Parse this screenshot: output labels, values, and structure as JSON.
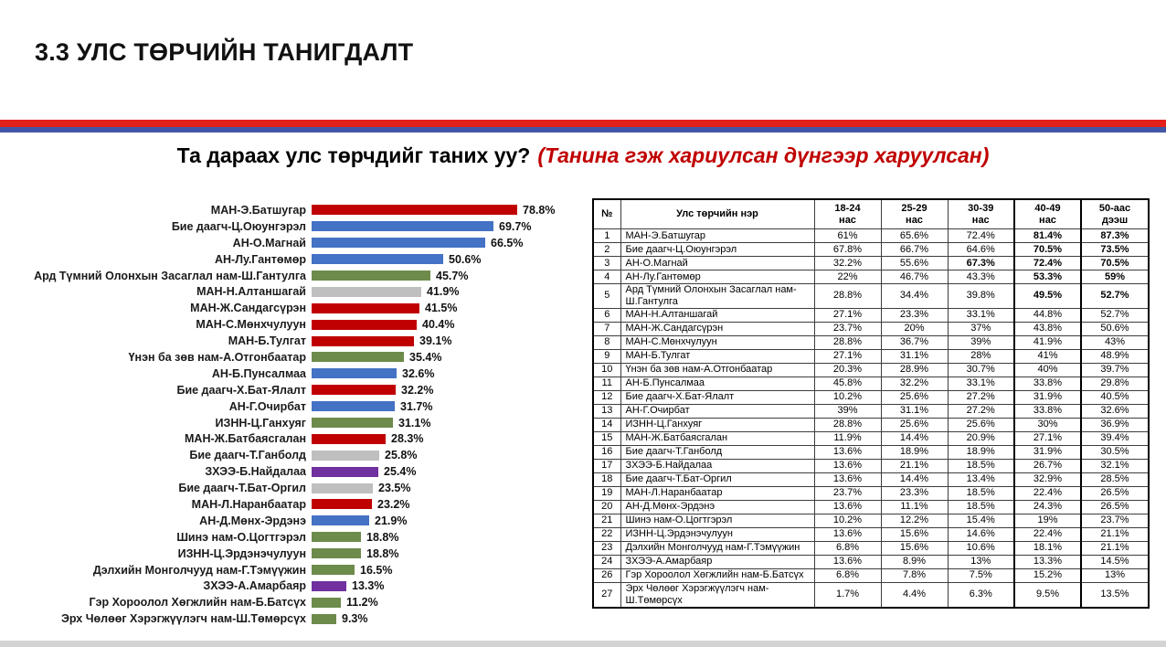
{
  "page": {
    "title": "3.3 УЛС ТӨРЧИЙН ТАНИГДАЛТ",
    "question": "Та дараах улс төрчдийг таних уу?",
    "question_note": "(Танина гэж хариулсан дүнгээр харуулсан)"
  },
  "colors": {
    "red": "#C00000",
    "blue": "#4472C4",
    "green": "#6D8B4A",
    "gray": "#BFBFBF",
    "purple": "#7030A0",
    "divider_red": "#E32119",
    "divider_blue": "#4356A5",
    "note_red": "#C00000",
    "footer_gray": "#D4D4D4"
  },
  "chart_data": [
    {
      "type": "bar",
      "orientation": "horizontal",
      "title": "Та дараах улс төрчдийг таних уу?",
      "xlabel": "",
      "ylabel": "",
      "xlim": [
        0,
        100
      ],
      "value_format": "percent",
      "categories": [
        "МАН-Э.Батшугар",
        "Бие даагч-Ц.Оюунгэрэл",
        "АН-О.Магнай",
        "АН-Лу.Гантөмөр",
        "Ард Түмний Олонхын Засаглал нам-Ш.Гантулга",
        "МАН-Н.Алтаншагай",
        "МАН-Ж.Сандагсүрэн",
        "МАН-С.Мөнхчулуун",
        "МАН-Б.Тулгат",
        "Үнэн ба зөв нам-А.Отгонбаатар",
        "АН-Б.Пунсалмаа",
        "Бие даагч-Х.Бат-Ялалт",
        "АН-Г.Очирбат",
        "ИЗНН-Ц.Ганхуяг",
        "МАН-Ж.Батбаясгалан",
        "Бие даагч-Т.Ганболд",
        "ЗХЭЭ-Б.Найдалаа",
        "Бие даагч-Т.Бат-Оргил",
        "МАН-Л.Наранбаатар",
        "АН-Д.Мөнх-Эрдэнэ",
        "Шинэ нам-О.Цогтгэрэл",
        "ИЗНН-Ц.Эрдэнэчулуун",
        "Дэлхийн Монголчууд нам-Г.Тэмүүжин",
        "ЗХЭЭ-А.Амарбаяр",
        "Гэр Хороолол Хөгжлийн нам-Б.Батсүх",
        "Эрх Чөлөөг Хэрэгжүүлэгч нам-Ш.Төмөрсүх"
      ],
      "values": [
        78.8,
        69.7,
        66.5,
        50.6,
        45.7,
        41.9,
        41.5,
        40.4,
        39.1,
        35.4,
        32.6,
        32.2,
        31.7,
        31.1,
        28.3,
        25.8,
        25.4,
        23.5,
        23.2,
        21.9,
        18.8,
        18.8,
        16.5,
        13.3,
        11.2,
        9.3
      ],
      "labels": [
        "78.8%",
        "69.7%",
        "66.5%",
        "50.6%",
        "45.7%",
        "41.9%",
        "41.5%",
        "40.4%",
        "39.1%",
        "35.4%",
        "32.6%",
        "32.2%",
        "31.7%",
        "31.1%",
        "28.3%",
        "25.8%",
        "25.4%",
        "23.5%",
        "23.2%",
        "21.9%",
        "18.8%",
        "18.8%",
        "16.5%",
        "13.3%",
        "11.2%",
        "9.3%"
      ],
      "bar_colors": [
        "red",
        "blue",
        "blue",
        "blue",
        "green",
        "gray",
        "red",
        "red",
        "red",
        "green",
        "blue",
        "red",
        "blue",
        "green",
        "red",
        "gray",
        "purple",
        "gray",
        "red",
        "blue",
        "green",
        "green",
        "green",
        "purple",
        "green",
        "green"
      ]
    },
    {
      "type": "table",
      "columns": [
        "№",
        "Улс төрчийн нэр",
        "18-24 нас",
        "25-29 нас",
        "30-39 нас",
        "40-49 нас",
        "50-аас дээш"
      ],
      "rows": [
        {
          "no": "1",
          "name": "МАН-Э.Батшугар",
          "values": [
            "61%",
            "65.6%",
            "72.4%",
            "81.4%",
            "87.3%"
          ],
          "bold": [
            0,
            0,
            0,
            1,
            1
          ]
        },
        {
          "no": "2",
          "name": "Бие даагч-Ц.Оюунгэрэл",
          "values": [
            "67.8%",
            "66.7%",
            "64.6%",
            "70.5%",
            "73.5%"
          ],
          "bold": [
            0,
            0,
            0,
            1,
            1
          ]
        },
        {
          "no": "3",
          "name": "АН-О.Магнай",
          "values": [
            "32.2%",
            "55.6%",
            "67.3%",
            "72.4%",
            "70.5%"
          ],
          "bold": [
            0,
            0,
            1,
            1,
            1
          ]
        },
        {
          "no": "4",
          "name": "АН-Лу.Гантөмөр",
          "values": [
            "22%",
            "46.7%",
            "43.3%",
            "53.3%",
            "59%"
          ],
          "bold": [
            0,
            0,
            0,
            1,
            1
          ]
        },
        {
          "no": "5",
          "name": "Ард Түмний Олонхын Засаглал нам-Ш.Гантулга",
          "values": [
            "28.8%",
            "34.4%",
            "39.8%",
            "49.5%",
            "52.7%"
          ],
          "bold": [
            0,
            0,
            0,
            1,
            1
          ]
        },
        {
          "no": "6",
          "name": "МАН-Н.Алтаншагай",
          "values": [
            "27.1%",
            "23.3%",
            "33.1%",
            "44.8%",
            "52.7%"
          ],
          "bold": [
            0,
            0,
            0,
            0,
            0
          ]
        },
        {
          "no": "7",
          "name": "МАН-Ж.Сандагсүрэн",
          "values": [
            "23.7%",
            "20%",
            "37%",
            "43.8%",
            "50.6%"
          ],
          "bold": [
            0,
            0,
            0,
            0,
            0
          ]
        },
        {
          "no": "8",
          "name": "МАН-С.Мөнхчулуун",
          "values": [
            "28.8%",
            "36.7%",
            "39%",
            "41.9%",
            "43%"
          ],
          "bold": [
            0,
            0,
            0,
            0,
            0
          ]
        },
        {
          "no": "9",
          "name": "МАН-Б.Тулгат",
          "values": [
            "27.1%",
            "31.1%",
            "28%",
            "41%",
            "48.9%"
          ],
          "bold": [
            0,
            0,
            0,
            0,
            0
          ]
        },
        {
          "no": "10",
          "name": "Үнэн ба зөв нам-А.Отгонбаатар",
          "values": [
            "20.3%",
            "28.9%",
            "30.7%",
            "40%",
            "39.7%"
          ],
          "bold": [
            0,
            0,
            0,
            0,
            0
          ]
        },
        {
          "no": "11",
          "name": "АН-Б.Пунсалмаа",
          "values": [
            "45.8%",
            "32.2%",
            "33.1%",
            "33.8%",
            "29.8%"
          ],
          "bold": [
            0,
            0,
            0,
            0,
            0
          ]
        },
        {
          "no": "12",
          "name": "Бие даагч-Х.Бат-Ялалт",
          "values": [
            "10.2%",
            "25.6%",
            "27.2%",
            "31.9%",
            "40.5%"
          ],
          "bold": [
            0,
            0,
            0,
            0,
            0
          ]
        },
        {
          "no": "13",
          "name": "АН-Г.Очирбат",
          "values": [
            "39%",
            "31.1%",
            "27.2%",
            "33.8%",
            "32.6%"
          ],
          "bold": [
            0,
            0,
            0,
            0,
            0
          ]
        },
        {
          "no": "14",
          "name": "ИЗНН-Ц.Ганхуяг",
          "values": [
            "28.8%",
            "25.6%",
            "25.6%",
            "30%",
            "36.9%"
          ],
          "bold": [
            0,
            0,
            0,
            0,
            0
          ]
        },
        {
          "no": "15",
          "name": "МАН-Ж.Батбаясгалан",
          "values": [
            "11.9%",
            "14.4%",
            "20.9%",
            "27.1%",
            "39.4%"
          ],
          "bold": [
            0,
            0,
            0,
            0,
            0
          ]
        },
        {
          "no": "16",
          "name": "Бие даагч-Т.Ганболд",
          "values": [
            "13.6%",
            "18.9%",
            "18.9%",
            "31.9%",
            "30.5%"
          ],
          "bold": [
            0,
            0,
            0,
            0,
            0
          ]
        },
        {
          "no": "17",
          "name": "ЗХЭЭ-Б.Найдалаа",
          "values": [
            "13.6%",
            "21.1%",
            "18.5%",
            "26.7%",
            "32.1%"
          ],
          "bold": [
            0,
            0,
            0,
            0,
            0
          ]
        },
        {
          "no": "18",
          "name": "Бие даагч-Т.Бат-Оргил",
          "values": [
            "13.6%",
            "14.4%",
            "13.4%",
            "32.9%",
            "28.5%"
          ],
          "bold": [
            0,
            0,
            0,
            0,
            0
          ]
        },
        {
          "no": "19",
          "name": "МАН-Л.Наранбаатар",
          "values": [
            "23.7%",
            "23.3%",
            "18.5%",
            "22.4%",
            "26.5%"
          ],
          "bold": [
            0,
            0,
            0,
            0,
            0
          ]
        },
        {
          "no": "20",
          "name": "АН-Д.Мөнх-Эрдэнэ",
          "values": [
            "13.6%",
            "11.1%",
            "18.5%",
            "24.3%",
            "26.5%"
          ],
          "bold": [
            0,
            0,
            0,
            0,
            0
          ]
        },
        {
          "no": "21",
          "name": "Шинэ нам-О.Цогтгэрэл",
          "values": [
            "10.2%",
            "12.2%",
            "15.4%",
            "19%",
            "23.7%"
          ],
          "bold": [
            0,
            0,
            0,
            0,
            0
          ]
        },
        {
          "no": "22",
          "name": "ИЗНН-Ц.Эрдэнэчулуун",
          "values": [
            "13.6%",
            "15.6%",
            "14.6%",
            "22.4%",
            "21.1%"
          ],
          "bold": [
            0,
            0,
            0,
            0,
            0
          ]
        },
        {
          "no": "23",
          "name": "Дэлхийн Монголчууд нам-Г.Тэмүүжин",
          "values": [
            "6.8%",
            "15.6%",
            "10.6%",
            "18.1%",
            "21.1%"
          ],
          "bold": [
            0,
            0,
            0,
            0,
            0
          ]
        },
        {
          "no": "24",
          "name": "ЗХЭЭ-А.Амарбаяр",
          "values": [
            "13.6%",
            "8.9%",
            "13%",
            "13.3%",
            "14.5%"
          ],
          "bold": [
            0,
            0,
            0,
            0,
            0
          ]
        },
        {
          "no": "26",
          "name": "Гэр Хороолол Хөгжлийн нам-Б.Батсүх",
          "values": [
            "6.8%",
            "7.8%",
            "7.5%",
            "15.2%",
            "13%"
          ],
          "bold": [
            0,
            0,
            0,
            0,
            0
          ]
        },
        {
          "no": "27",
          "name": "Эрх Чөлөөг Хэрэгжүүлэгч нам-Ш.Төмөрсүх",
          "values": [
            "1.7%",
            "4.4%",
            "6.3%",
            "9.5%",
            "13.5%"
          ],
          "bold": [
            0,
            0,
            0,
            0,
            0
          ]
        }
      ]
    }
  ]
}
